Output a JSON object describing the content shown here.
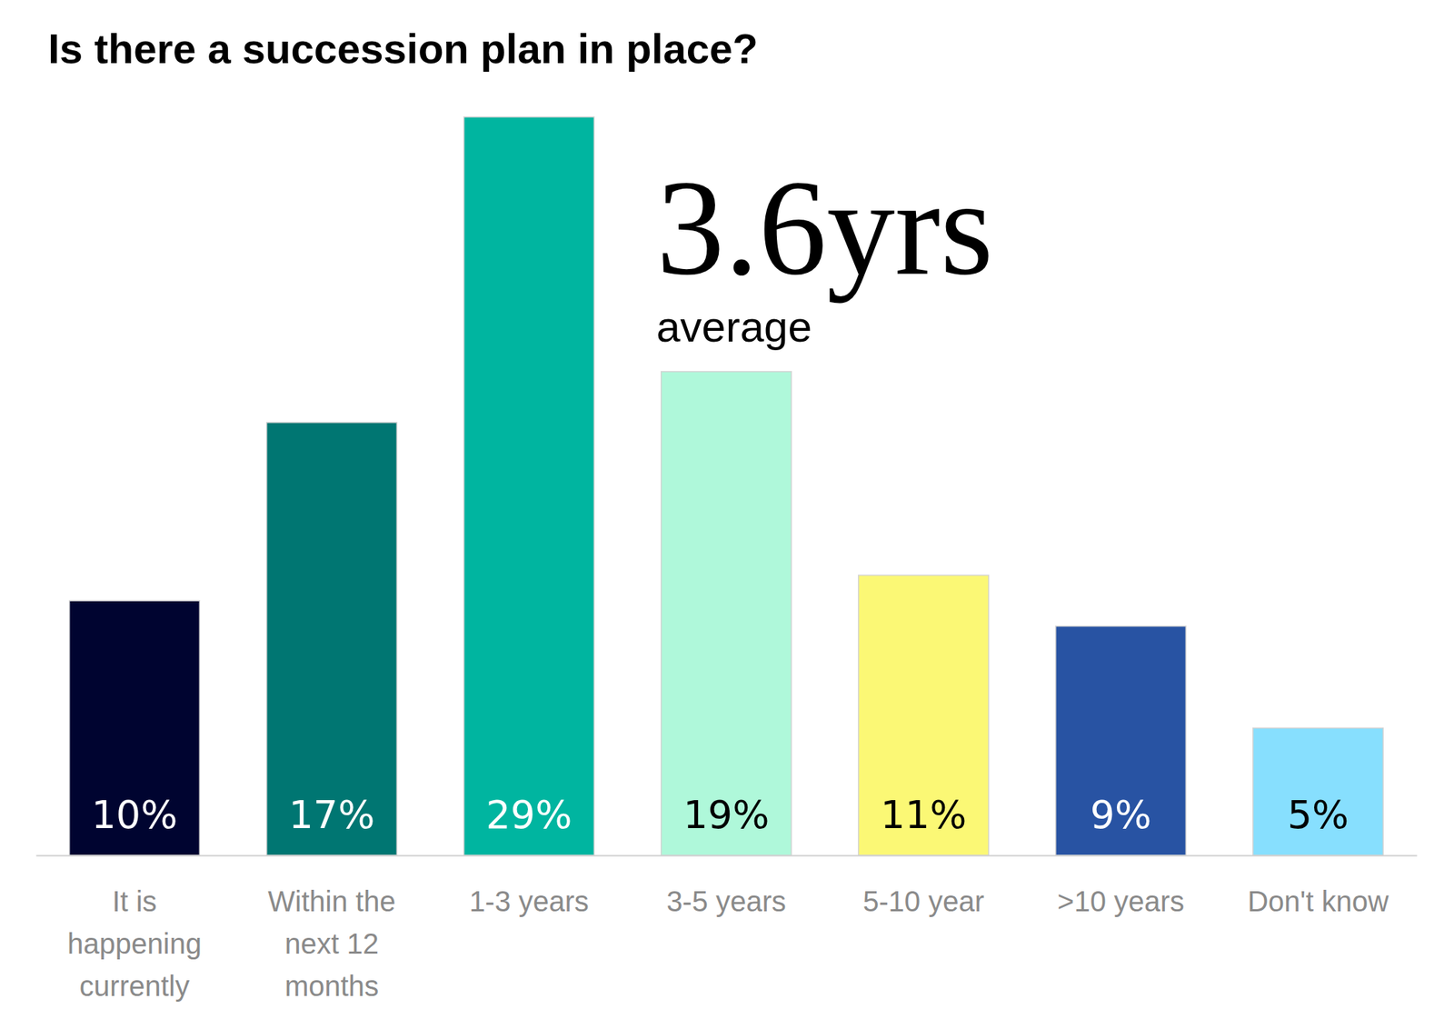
{
  "chart_data": {
    "type": "bar",
    "title": "Is there a succession plan in place?",
    "categories": [
      "It is happening currently",
      "Within the next 12 months",
      "1-3 years",
      "3-5 years",
      "5-10 year",
      ">10 years",
      "Don't know"
    ],
    "values": [
      10,
      17,
      29,
      19,
      11,
      9,
      5
    ],
    "value_labels": [
      "10%",
      "17%",
      "29%",
      "19%",
      "11%",
      "9%",
      "5%"
    ],
    "colors": [
      "#000430",
      "#007672",
      "#00b5a0",
      "#aff8da",
      "#fbf875",
      "#2853a3",
      "#87dffe"
    ],
    "data_labels": true,
    "tick_labels": "x",
    "annotations": [
      "3.6yrs",
      "average"
    ]
  }
}
